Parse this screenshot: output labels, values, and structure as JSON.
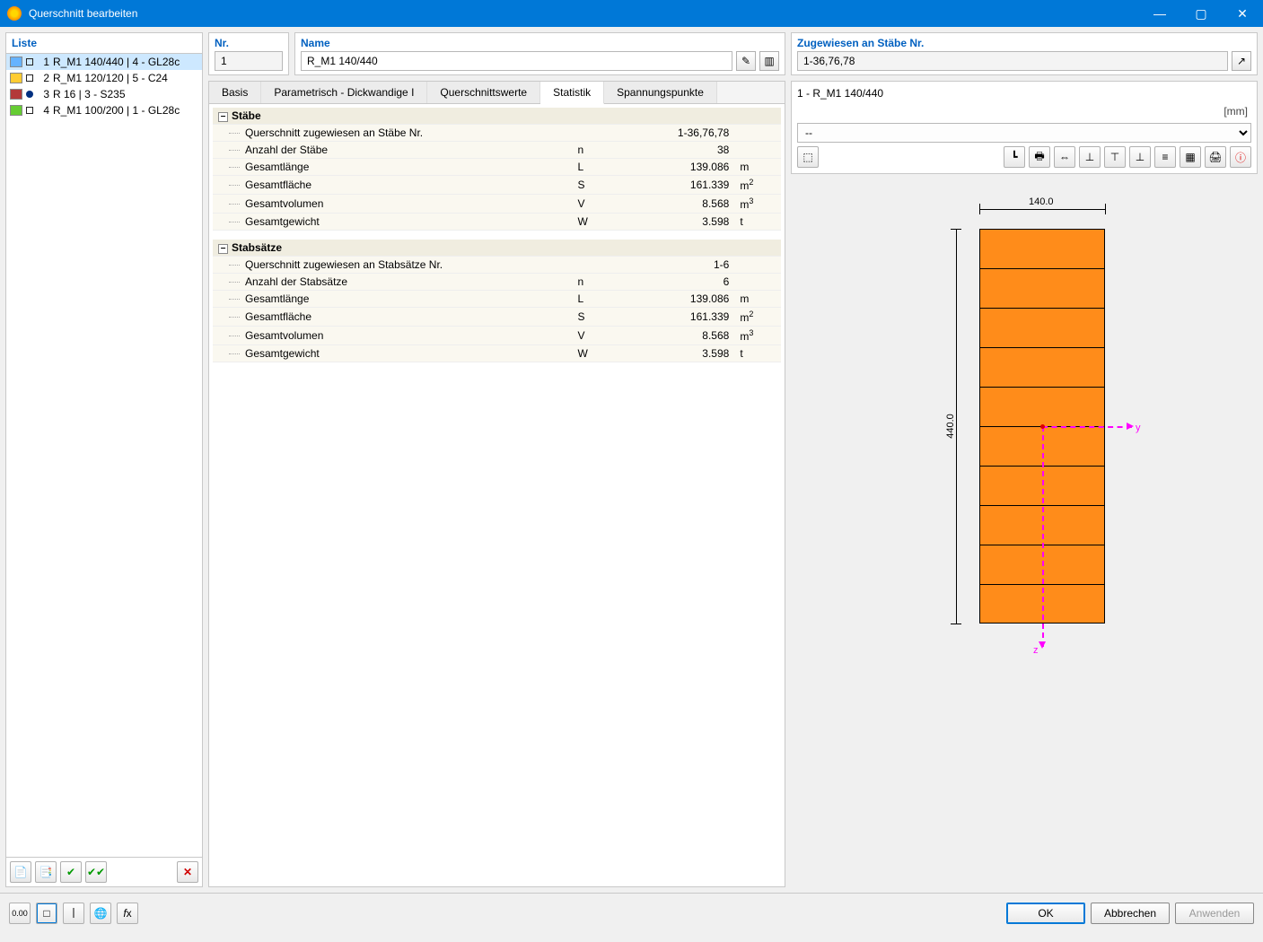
{
  "window": {
    "title": "Querschnitt bearbeiten"
  },
  "sidebar": {
    "header": "Liste",
    "items": [
      {
        "num": "1",
        "label": "R_M1 140/440 | 4 - GL28c",
        "swatch": "#66b3ff",
        "shape": "square",
        "selected": true
      },
      {
        "num": "2",
        "label": "R_M1 120/120 | 5 - C24",
        "swatch": "#ffcc33",
        "shape": "square",
        "selected": false
      },
      {
        "num": "3",
        "label": "R 16 | 3 - S235",
        "swatch": "#b33939",
        "shape": "circle",
        "selected": false
      },
      {
        "num": "4",
        "label": "R_M1 100/200 | 1 - GL28c",
        "swatch": "#66cc33",
        "shape": "square",
        "selected": false
      }
    ]
  },
  "fields": {
    "nr_label": "Nr.",
    "nr": "1",
    "name_label": "Name",
    "name": "R_M1 140/440",
    "assigned_label": "Zugewiesen an Stäbe Nr.",
    "assigned": "1-36,76,78"
  },
  "tabs": {
    "basis": "Basis",
    "parametrisch": "Parametrisch - Dickwandige I",
    "werte": "Querschnittswerte",
    "statistik": "Statistik",
    "spannung": "Spannungspunkte",
    "active": "statistik"
  },
  "stats": {
    "group1": {
      "title": "Stäbe",
      "rows": [
        {
          "label": "Querschnitt zugewiesen an Stäbe Nr.",
          "sym": "",
          "val": "1-36,76,78",
          "unit": ""
        },
        {
          "label": "Anzahl der Stäbe",
          "sym": "n",
          "val": "38",
          "unit": ""
        },
        {
          "label": "Gesamtlänge",
          "sym": "L",
          "val": "139.086",
          "unit": "m"
        },
        {
          "label": "Gesamtfläche",
          "sym": "S",
          "val": "161.339",
          "unit": "m2"
        },
        {
          "label": "Gesamtvolumen",
          "sym": "V",
          "val": "8.568",
          "unit": "m3"
        },
        {
          "label": "Gesamtgewicht",
          "sym": "W",
          "val": "3.598",
          "unit": "t"
        }
      ]
    },
    "group2": {
      "title": "Stabsätze",
      "rows": [
        {
          "label": "Querschnitt zugewiesen an Stabsätze Nr.",
          "sym": "",
          "val": "1-6",
          "unit": ""
        },
        {
          "label": "Anzahl der Stabsätze",
          "sym": "n",
          "val": "6",
          "unit": ""
        },
        {
          "label": "Gesamtlänge",
          "sym": "L",
          "val": "139.086",
          "unit": "m"
        },
        {
          "label": "Gesamtfläche",
          "sym": "S",
          "val": "161.339",
          "unit": "m2"
        },
        {
          "label": "Gesamtvolumen",
          "sym": "V",
          "val": "8.568",
          "unit": "m3"
        },
        {
          "label": "Gesamtgewicht",
          "sym": "W",
          "val": "3.598",
          "unit": "t"
        }
      ]
    }
  },
  "preview": {
    "title": "1 - R_M1 140/440",
    "unit_label": "[mm]",
    "combo": "--",
    "section": {
      "width_mm": 140.0,
      "height_mm": 440.0,
      "width_label": "140.0",
      "height_label": "440.0",
      "fill": "#ff8c1a",
      "stroke": "#000000",
      "slices": 10,
      "axis_color": "#ff00ff",
      "y_label": "y",
      "z_label": "z"
    }
  },
  "buttons": {
    "ok": "OK",
    "cancel": "Abbrechen",
    "apply": "Anwenden"
  }
}
